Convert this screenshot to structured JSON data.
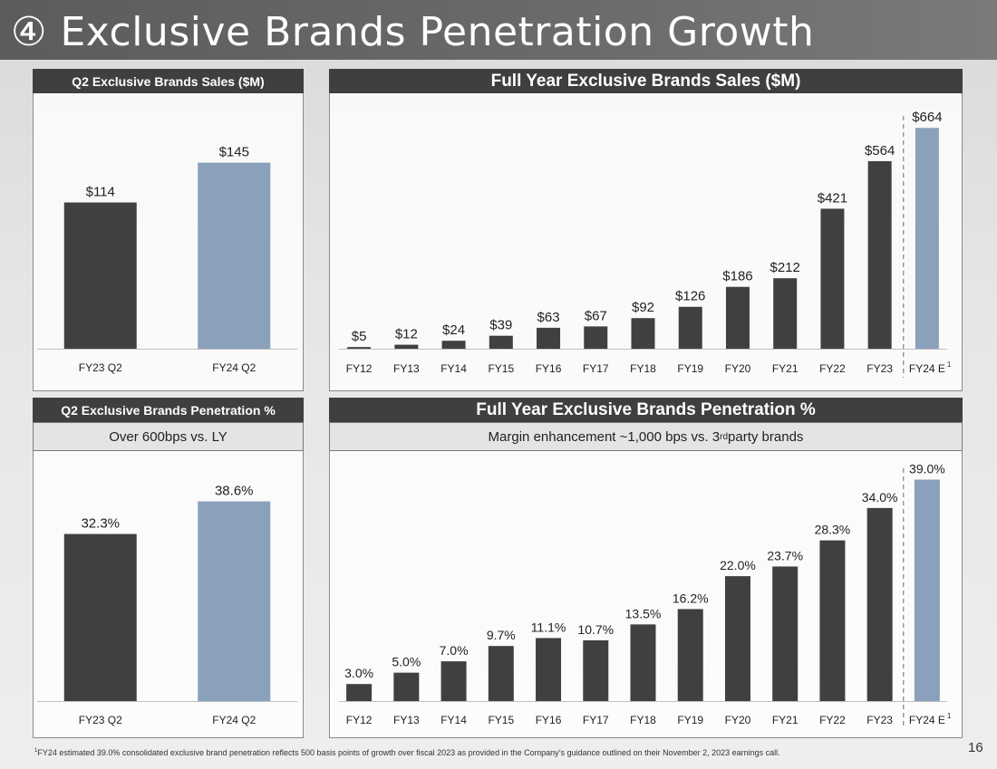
{
  "page": {
    "title_symbol": "④",
    "title": "Exclusive Brands Penetration Growth",
    "footnote_sup": "1",
    "footnote": "FY24 estimated 39.0% consolidated exclusive brand penetration reflects 500 basis points of growth over fiscal 2023 as provided in the Company’s guidance outlined on their November 2, 2023 earnings call.",
    "page_number": "16"
  },
  "panels": {
    "q2_sales_header": "Q2 Exclusive Brands Sales ($M)",
    "fy_sales_header": "Full Year Exclusive Brands Sales ($M)",
    "q2_pen_header": "Q2 Exclusive Brands Penetration %",
    "q2_pen_sub": "Over 600bps vs. LY",
    "fy_pen_header": "Full Year Exclusive Brands Penetration %",
    "fy_pen_sub_pre": "Margin enhancement ~1,000 bps vs. 3",
    "fy_pen_sub_sup": "rd",
    "fy_pen_sub_post": " party brands"
  },
  "colors": {
    "actual": "#404040",
    "estimate": "#8aa0bb",
    "text": "#222222",
    "axis": "#bfbfbf",
    "divider": "#6f86a3"
  },
  "chart_data": [
    {
      "id": "q2_sales",
      "type": "bar",
      "title": "Q2 Exclusive Brands Sales ($M)",
      "categories": [
        "FY23 Q2",
        "FY24 Q2"
      ],
      "values": [
        114,
        145
      ],
      "labels": [
        "$114",
        "$145"
      ],
      "estimate": [
        false,
        true
      ],
      "ylim": [
        0,
        185
      ]
    },
    {
      "id": "fy_sales",
      "type": "bar",
      "title": "Full Year Exclusive Brands Sales ($M)",
      "categories": [
        "FY12",
        "FY13",
        "FY14",
        "FY15",
        "FY16",
        "FY17",
        "FY18",
        "FY19",
        "FY20",
        "FY21",
        "FY22",
        "FY23",
        "FY24 E"
      ],
      "values": [
        5,
        12,
        24,
        39,
        63,
        67,
        92,
        126,
        186,
        212,
        421,
        564,
        664
      ],
      "labels": [
        "$5",
        "$12",
        "$24",
        "$39",
        "$63",
        "$67",
        "$92",
        "$126",
        "$186",
        "$212",
        "$421",
        "$564",
        "$664"
      ],
      "estimate": [
        false,
        false,
        false,
        false,
        false,
        false,
        false,
        false,
        false,
        false,
        false,
        false,
        true
      ],
      "last_category_footnote": "1",
      "ylim": [
        0,
        700
      ]
    },
    {
      "id": "q2_pen",
      "type": "bar",
      "title": "Q2 Exclusive Brands Penetration %",
      "categories": [
        "FY23 Q2",
        "FY24 Q2"
      ],
      "values": [
        32.3,
        38.6
      ],
      "labels": [
        "32.3%",
        "38.6%"
      ],
      "estimate": [
        false,
        true
      ],
      "ylim": [
        0,
        45
      ]
    },
    {
      "id": "fy_pen",
      "type": "bar",
      "title": "Full Year Exclusive Brands Penetration %",
      "categories": [
        "FY12",
        "FY13",
        "FY14",
        "FY15",
        "FY16",
        "FY17",
        "FY18",
        "FY19",
        "FY20",
        "FY21",
        "FY22",
        "FY23",
        "FY24 E"
      ],
      "values": [
        3.0,
        5.0,
        7.0,
        9.7,
        11.1,
        10.7,
        13.5,
        16.2,
        22.0,
        23.7,
        28.3,
        34.0,
        39.0
      ],
      "labels": [
        "3.0%",
        "5.0%",
        "7.0%",
        "9.7%",
        "11.1%",
        "10.7%",
        "13.5%",
        "16.2%",
        "22.0%",
        "23.7%",
        "28.3%",
        "34.0%",
        "39.0%"
      ],
      "estimate": [
        false,
        false,
        false,
        false,
        false,
        false,
        false,
        false,
        false,
        false,
        false,
        false,
        true
      ],
      "last_category_footnote": "1",
      "ylim": [
        0,
        41
      ]
    }
  ]
}
